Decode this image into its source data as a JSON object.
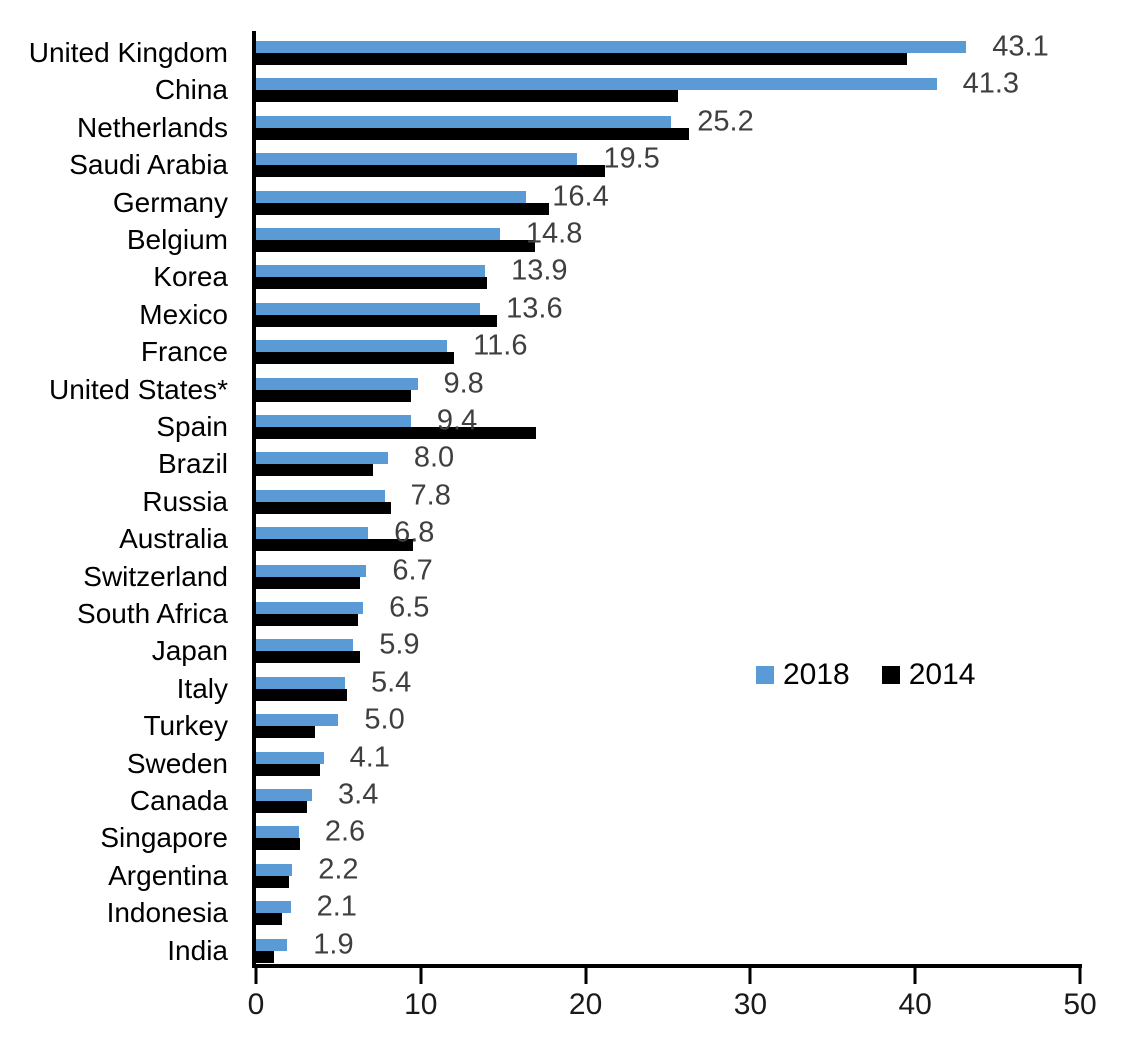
{
  "chart_data": {
    "type": "bar",
    "orientation": "horizontal",
    "title": "",
    "xlabel": "",
    "ylabel": "",
    "xlim": [
      0,
      50
    ],
    "x_ticks": [
      "0",
      "10",
      "20",
      "30",
      "40",
      "50"
    ],
    "grid": false,
    "categories": [
      "United Kingdom",
      "China",
      "Netherlands",
      "Saudi Arabia",
      "Germany",
      "Belgium",
      "Korea",
      "Mexico",
      "France",
      "United States*",
      "Spain",
      "Brazil",
      "Russia",
      "Australia",
      "Switzerland",
      "South Africa",
      "Japan",
      "Italy",
      "Turkey",
      "Sweden",
      "Canada",
      "Singapore",
      "Argentina",
      "Indonesia",
      "India"
    ],
    "series": [
      {
        "name": "2018",
        "color": "#5B9BD5",
        "values": [
          43.1,
          41.3,
          25.2,
          19.5,
          16.4,
          14.8,
          13.9,
          13.6,
          11.6,
          9.8,
          9.4,
          8.0,
          7.8,
          6.8,
          6.7,
          6.5,
          5.9,
          5.4,
          5.0,
          4.1,
          3.4,
          2.6,
          2.2,
          2.1,
          1.9
        ]
      },
      {
        "name": "2014",
        "color": "#000000",
        "values": [
          39.5,
          25.6,
          26.3,
          21.2,
          17.8,
          16.9,
          14.0,
          14.6,
          12.0,
          9.4,
          17.0,
          7.1,
          8.2,
          9.5,
          6.3,
          6.2,
          6.3,
          5.5,
          3.6,
          3.9,
          3.1,
          2.7,
          2.0,
          1.6,
          1.1
        ]
      }
    ],
    "data_labels": [
      "43.1",
      "41.3",
      "25.2",
      "19.5",
      "16.4",
      "14.8",
      "13.9",
      "13.6",
      "11.6",
      "9.8",
      "9.4",
      "8.0",
      "7.8",
      "6.8",
      "6.7",
      "6.5",
      "5.9",
      "5.4",
      "5.0",
      "4.1",
      "3.4",
      "2.6",
      "2.2",
      "2.1",
      "1.9"
    ],
    "data_label_series": "2018",
    "legend": {
      "position": "center-right",
      "entries": [
        {
          "label": "2018",
          "color": "#5B9BD5"
        },
        {
          "label": "2014",
          "color": "#000000"
        }
      ]
    },
    "colors": {
      "background": "#FFFFFF",
      "axis": "#000000",
      "category_label": "#000000",
      "tick_label": "#1A1A1A",
      "data_label": "#3F3F3F"
    }
  }
}
